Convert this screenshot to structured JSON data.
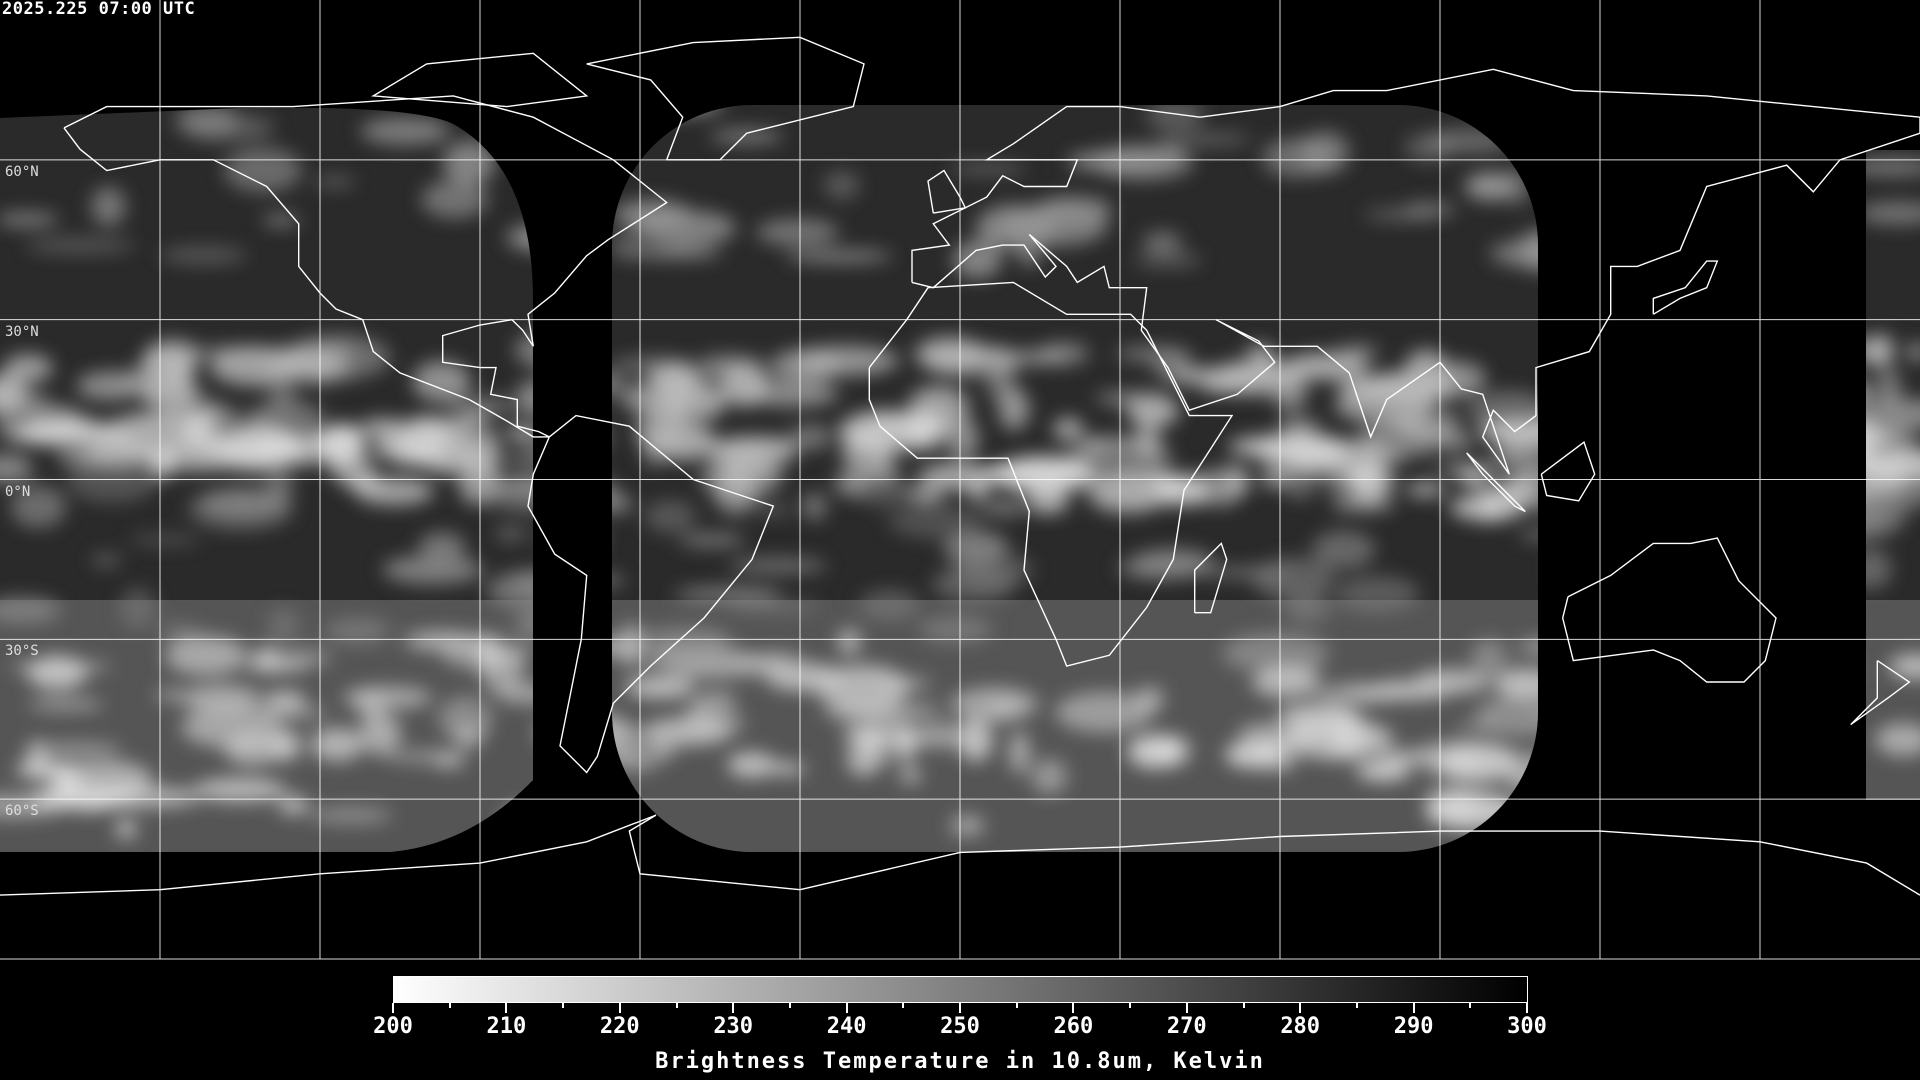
{
  "header": {
    "timestamp": "2025.225 07:00 UTC"
  },
  "map": {
    "projection": "equirectangular",
    "lon_range": [
      -180,
      180
    ],
    "lat_range": [
      -90,
      90
    ],
    "grid_spacing_deg": 30,
    "lat_labels": [
      "60°N",
      "30°N",
      "0°N",
      "30°S",
      "60°S"
    ],
    "colors": {
      "background": "#000000",
      "coastline": "#ffffff",
      "grid": "#ffffff"
    }
  },
  "colorbar": {
    "min": 200,
    "max": 300,
    "ticks": [
      "200",
      "210",
      "220",
      "230",
      "240",
      "250",
      "260",
      "270",
      "280",
      "290",
      "300"
    ],
    "title": "Brightness Temperature in 10.8um, Kelvin",
    "colormap": "white-to-black"
  }
}
